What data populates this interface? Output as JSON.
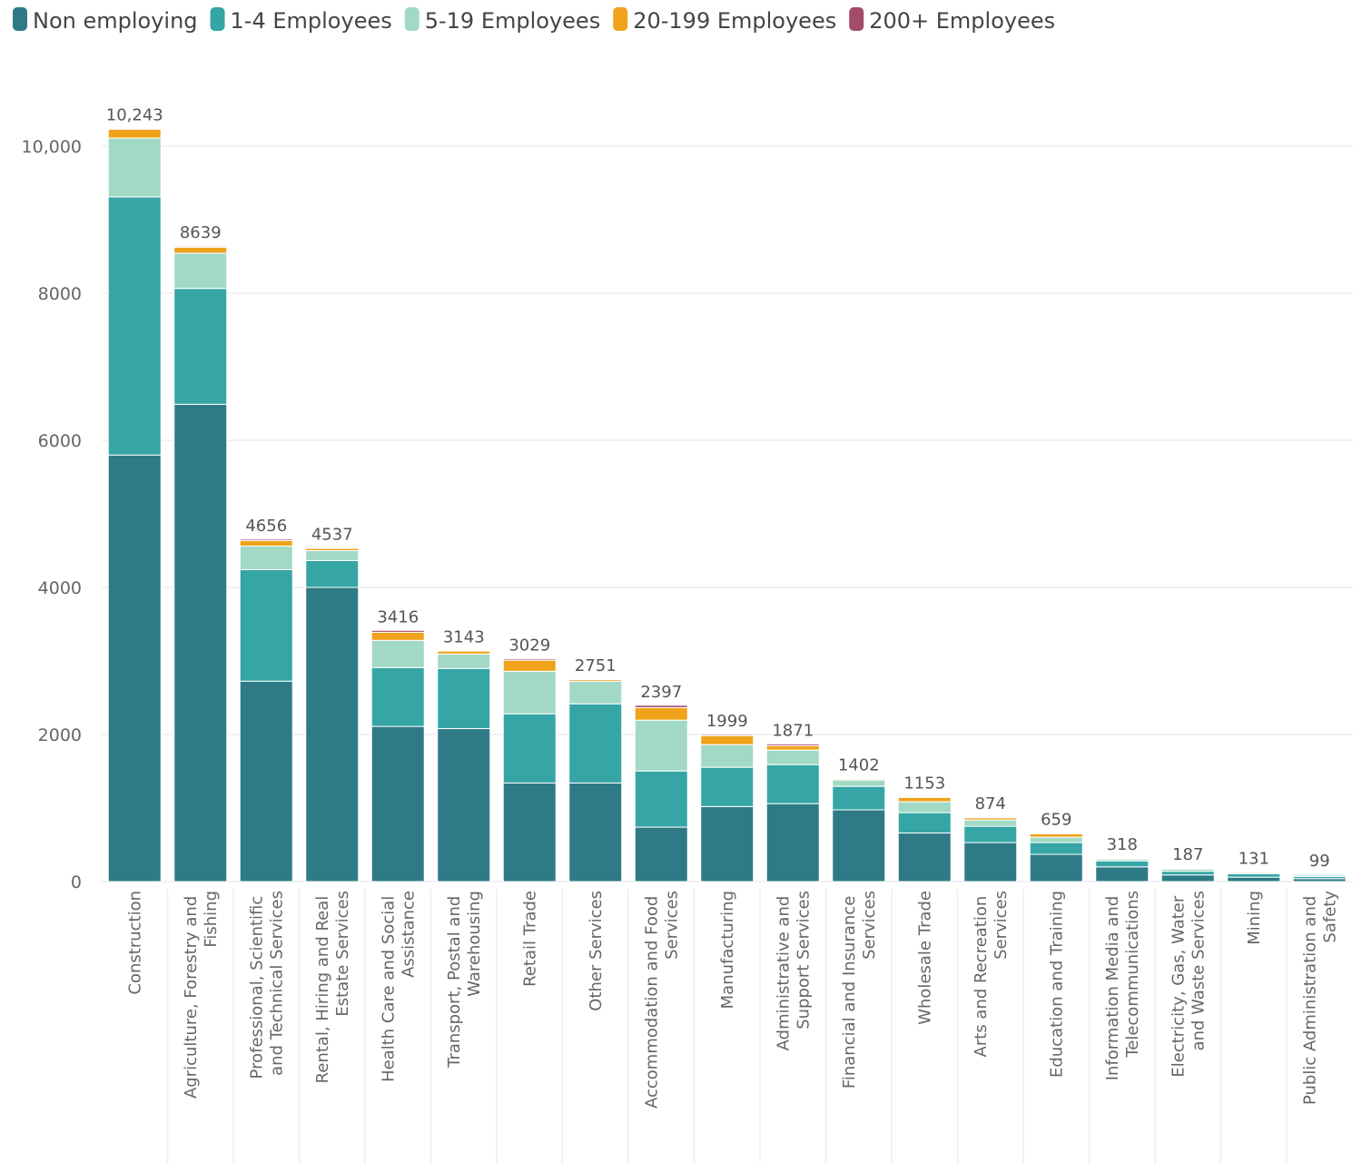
{
  "chart_data": {
    "type": "stacked_bar",
    "categories": [
      "Construction",
      "Agriculture, Forestry and Fishing",
      "Professional, Scientific and Technical Services",
      "Rental, Hiring and Real Estate Services",
      "Health Care and Social Assistance",
      "Transport, Postal and Warehousing",
      "Retail Trade",
      "Other Services",
      "Accommodation and Food Services",
      "Manufacturing",
      "Administrative and Support Services",
      "Financial and Insurance Services",
      "Wholesale Trade",
      "Arts and Recreation Services",
      "Education and Training",
      "Information Media and Telecommunications",
      "Electricity, Gas, Water and Waste Services",
      "Mining",
      "Public Administration and Safety"
    ],
    "series": [
      {
        "name": "Non employing",
        "color": "#2e7b87",
        "values": [
          5800,
          6490,
          2725,
          4000,
          2110,
          2080,
          1340,
          1340,
          740,
          1020,
          1060,
          975,
          660,
          530,
          370,
          200,
          90,
          60,
          40
        ]
      },
      {
        "name": "1-4 Employees",
        "color": "#36a5a5",
        "values": [
          3510,
          1575,
          1517,
          365,
          800,
          818,
          941,
          1077,
          764,
          534,
          530,
          320,
          277,
          222,
          160,
          80,
          50,
          45,
          30
        ]
      },
      {
        "name": "5-19 Employees",
        "color": "#a2d9c5",
        "values": [
          800,
          480,
          320,
          135,
          370,
          197,
          579,
          308,
          691,
          308,
          198,
          86,
          148,
          86,
          74,
          25,
          30,
          16,
          18
        ]
      },
      {
        "name": "20-199 Employees",
        "color": "#f0a21a",
        "values": [
          120,
          80,
          74,
          30,
          110,
          40,
          150,
          22,
          170,
          120,
          60,
          15,
          60,
          30,
          45,
          10,
          12,
          8,
          8
        ]
      },
      {
        "name": "200+ Employees",
        "color": "#a44b6a",
        "values": [
          13,
          14,
          20,
          7,
          26,
          8,
          19,
          4,
          32,
          17,
          23,
          6,
          8,
          6,
          10,
          3,
          5,
          2,
          3
        ]
      }
    ],
    "totals": [
      {
        "value": 10243,
        "label": "10,243"
      },
      8639,
      4656,
      4537,
      3416,
      3143,
      3029,
      2751,
      2397,
      1999,
      1871,
      1402,
      1153,
      874,
      659,
      318,
      187,
      131,
      99
    ],
    "ylim": [
      0,
      11000
    ],
    "yticks": [
      0,
      2000,
      4000,
      6000,
      8000,
      {
        "value": 10000,
        "label": "10,000"
      }
    ],
    "grid": true,
    "legend": "top-left"
  }
}
